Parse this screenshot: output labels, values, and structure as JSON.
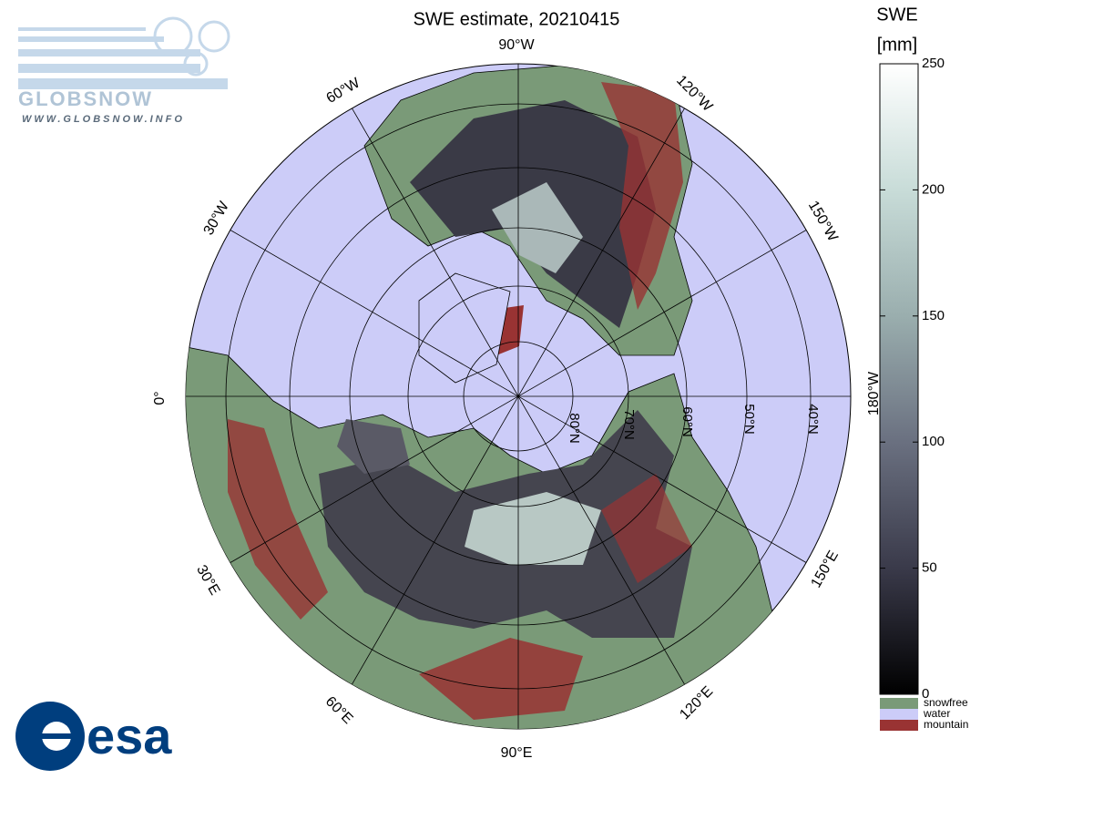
{
  "title": "SWE estimate, 20210415",
  "logo": {
    "name": "GLOBSNOW",
    "url": "WWW.GLOBSNOW.INFO"
  },
  "agency": "esa",
  "colorbar": {
    "label": [
      "SWE",
      "[mm]"
    ],
    "lim": [
      0,
      250
    ],
    "ticks": [
      0,
      50,
      100,
      150,
      200,
      250
    ],
    "colors": [
      "#000000",
      "#3a3a4a",
      "#6a7080",
      "#9aaeae",
      "#c8dcd8",
      "#ffffff"
    ],
    "legend": [
      {
        "name": "snowfree",
        "color": "#7a9a78"
      },
      {
        "name": "water",
        "color": "#ccccf8"
      },
      {
        "name": "mountain",
        "color": "#993333"
      }
    ]
  },
  "map": {
    "lon_labels": [
      "90°W",
      "120°W",
      "150°W",
      "180°W",
      "0°",
      "30°W",
      "60°W",
      "90°E",
      "120°E",
      "60°E",
      "30°E",
      "150°E"
    ],
    "lat_labels": [
      "80°N",
      "70°N",
      "60°N",
      "50°N",
      "40°N"
    ]
  }
}
